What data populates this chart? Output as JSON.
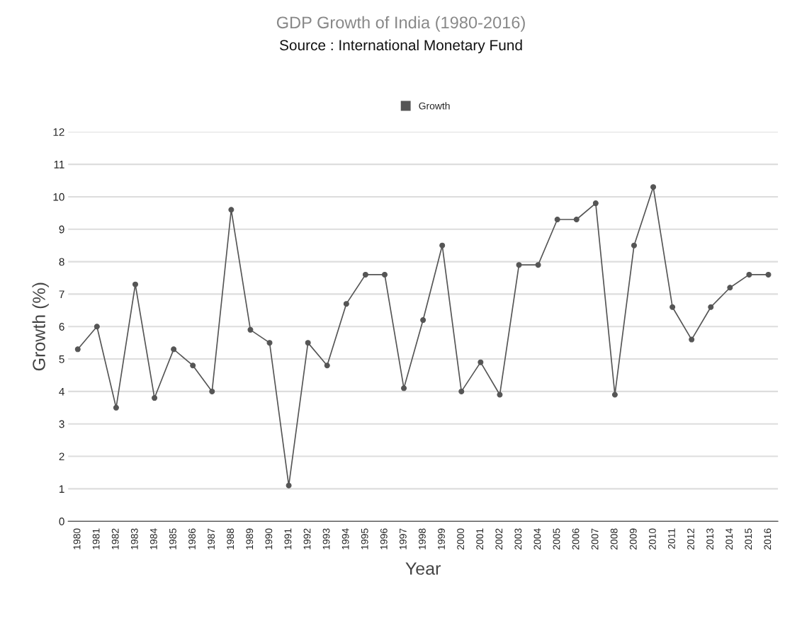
{
  "chart_data": {
    "type": "line",
    "title": "GDP Growth of India (1980-2016)",
    "subtitle": "Source : International Monetary Fund",
    "xlabel": "Year",
    "ylabel": "Growth (%)",
    "categories": [
      "1980",
      "1981",
      "1982",
      "1983",
      "1984",
      "1985",
      "1986",
      "1987",
      "1988",
      "1989",
      "1990",
      "1991",
      "1992",
      "1993",
      "1994",
      "1995",
      "1996",
      "1997",
      "1998",
      "1999",
      "2000",
      "2001",
      "2002",
      "2003",
      "2004",
      "2005",
      "2006",
      "2007",
      "2008",
      "2009",
      "2010",
      "2011",
      "2012",
      "2013",
      "2014",
      "2015",
      "2016"
    ],
    "series": [
      {
        "name": "Growth",
        "color": "#555555",
        "values": [
          5.3,
          6.0,
          3.5,
          7.3,
          3.8,
          5.3,
          4.8,
          4.0,
          9.6,
          5.9,
          5.5,
          1.1,
          5.5,
          4.8,
          6.7,
          7.6,
          7.6,
          4.1,
          6.2,
          8.5,
          4.0,
          4.9,
          3.9,
          7.9,
          7.9,
          9.3,
          9.3,
          9.8,
          3.9,
          8.5,
          10.3,
          6.6,
          5.6,
          6.6,
          7.2,
          7.6,
          7.6
        ]
      }
    ],
    "ylim": [
      0,
      12
    ],
    "yticks": [
      0,
      1,
      2,
      3,
      4,
      5,
      6,
      7,
      8,
      9,
      10,
      11,
      12
    ],
    "grid": "y",
    "legend": "top",
    "marker": "circle",
    "line_style": "solid"
  }
}
